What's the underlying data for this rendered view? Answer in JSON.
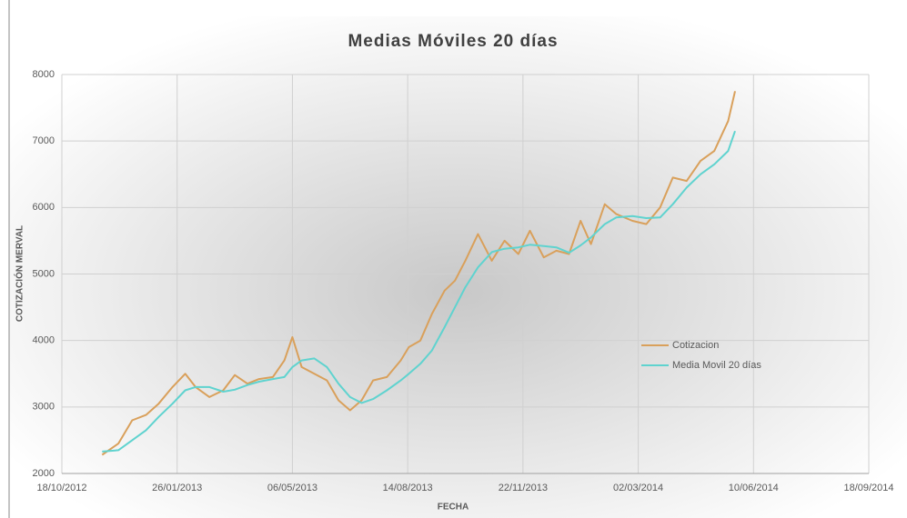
{
  "chart_data": {
    "type": "line",
    "title": "Medias Móviles 20 días",
    "x_label": "FECHA",
    "y_label": "COTIZACIÓN MERVAL",
    "x": [
      "2012-11-22",
      "2012-12-06",
      "2012-12-18",
      "2012-12-30",
      "2013-01-10",
      "2013-01-22",
      "2013-02-02",
      "2013-02-11",
      "2013-02-23",
      "2013-03-07",
      "2013-03-17",
      "2013-03-28",
      "2013-04-07",
      "2013-04-19",
      "2013-04-29",
      "2013-05-06",
      "2013-05-14",
      "2013-05-25",
      "2013-06-05",
      "2013-06-15",
      "2013-06-25",
      "2013-07-05",
      "2013-07-15",
      "2013-07-27",
      "2013-08-08",
      "2013-08-15",
      "2013-08-25",
      "2013-09-04",
      "2013-09-15",
      "2013-09-24",
      "2013-10-03",
      "2013-10-14",
      "2013-10-26",
      "2013-11-06",
      "2013-11-18",
      "2013-11-28",
      "2013-12-10",
      "2013-12-21",
      "2014-01-01",
      "2014-01-11",
      "2014-01-20",
      "2014-02-01",
      "2014-02-11",
      "2014-02-25",
      "2014-03-09",
      "2014-03-21",
      "2014-04-01",
      "2014-04-13",
      "2014-04-25",
      "2014-05-07",
      "2014-05-19",
      "2014-05-25"
    ],
    "series": [
      {
        "name": "Cotizacion",
        "color": "#d9a05b",
        "values": [
          2280,
          2450,
          2800,
          2880,
          3050,
          3300,
          3500,
          3300,
          3150,
          3250,
          3480,
          3350,
          3420,
          3450,
          3700,
          4050,
          3600,
          3500,
          3400,
          3100,
          2950,
          3100,
          3400,
          3450,
          3700,
          3900,
          4000,
          4400,
          4750,
          4900,
          5200,
          5600,
          5200,
          5500,
          5300,
          5650,
          5250,
          5350,
          5300,
          5800,
          5450,
          6050,
          5900,
          5800,
          5750,
          6000,
          6450,
          6400,
          6700,
          6850,
          7300,
          7750
        ]
      },
      {
        "name": "Media Movil 20 días",
        "color": "#5fd3cf",
        "values": [
          2330,
          2350,
          2500,
          2650,
          2850,
          3050,
          3250,
          3300,
          3300,
          3230,
          3260,
          3330,
          3380,
          3420,
          3450,
          3600,
          3700,
          3730,
          3600,
          3350,
          3150,
          3060,
          3120,
          3250,
          3400,
          3500,
          3650,
          3850,
          4200,
          4500,
          4800,
          5100,
          5330,
          5380,
          5400,
          5440,
          5420,
          5400,
          5320,
          5430,
          5550,
          5750,
          5850,
          5870,
          5840,
          5850,
          6050,
          6300,
          6500,
          6650,
          6850,
          7150
        ]
      }
    ],
    "xlim": [
      "2012-10-18",
      "2014-09-18"
    ],
    "xticks": [
      {
        "value": "2012-10-18",
        "label": "18/10/2012"
      },
      {
        "value": "2013-01-26",
        "label": "26/01/2013"
      },
      {
        "value": "2013-05-06",
        "label": "06/05/2013"
      },
      {
        "value": "2013-08-14",
        "label": "14/08/2013"
      },
      {
        "value": "2013-11-22",
        "label": "22/11/2013"
      },
      {
        "value": "2014-03-02",
        "label": "02/03/2014"
      },
      {
        "value": "2014-06-10",
        "label": "10/06/2014"
      },
      {
        "value": "2014-09-18",
        "label": "18/09/2014"
      }
    ],
    "ylim": [
      2000,
      8000
    ],
    "yticks": [
      2000,
      3000,
      4000,
      5000,
      6000,
      7000,
      8000
    ],
    "grid": true,
    "legend": "right"
  }
}
